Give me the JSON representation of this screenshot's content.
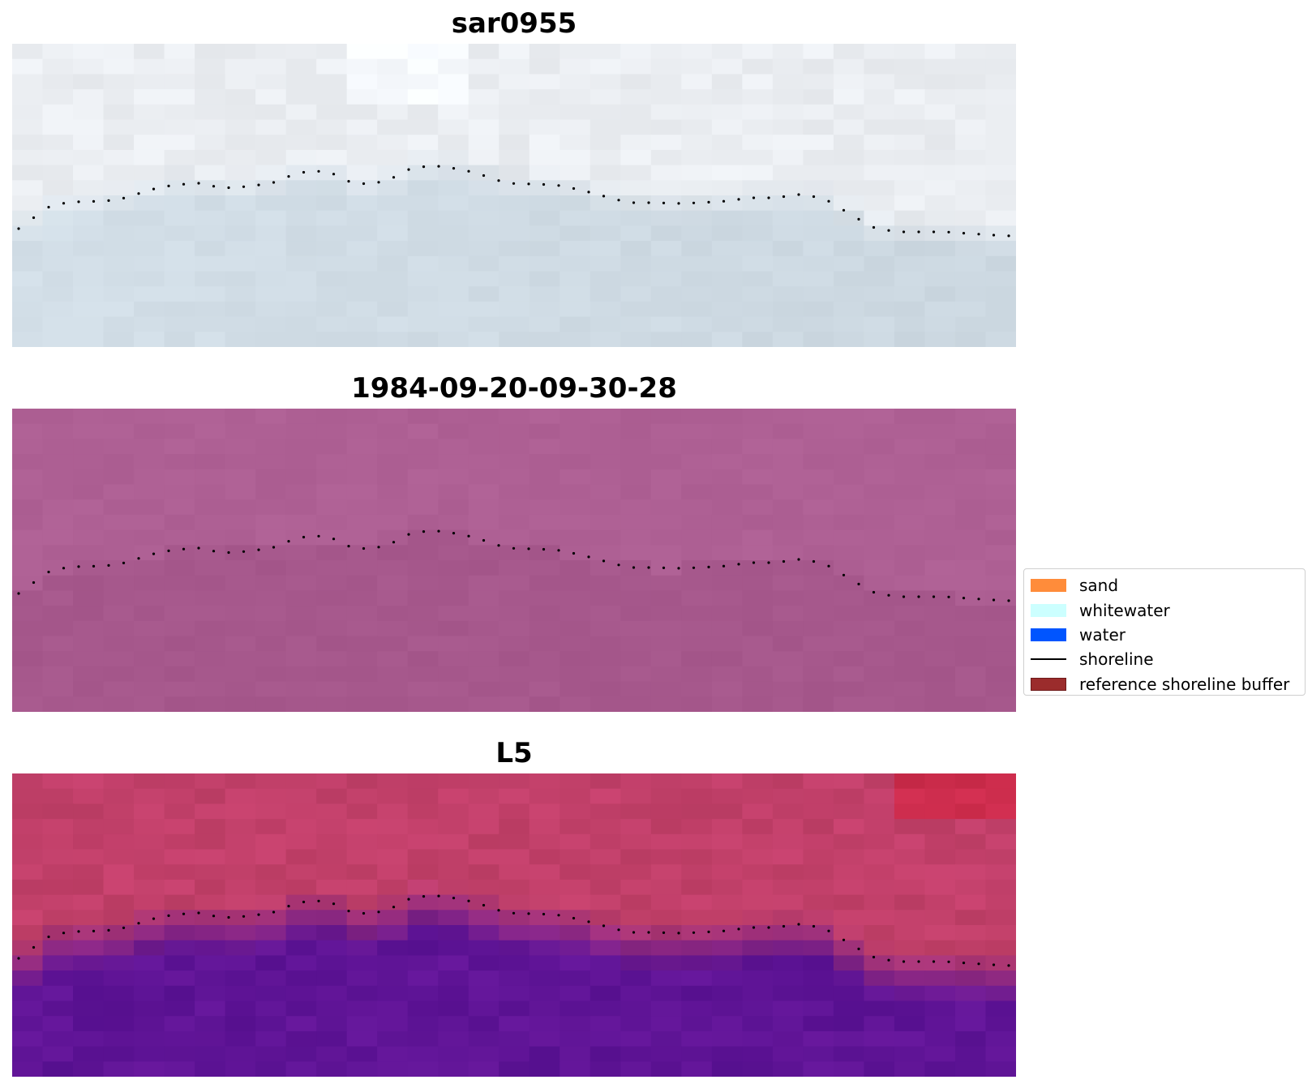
{
  "panels": [
    {
      "title": "sar0955",
      "style": "sar"
    },
    {
      "title": "1984-09-20-09-30-28",
      "style": "classified"
    },
    {
      "title": "L5",
      "style": "index"
    }
  ],
  "legend": {
    "items": [
      {
        "label": "sand",
        "color": "#ff8c3a",
        "kind": "patch"
      },
      {
        "label": "whitewater",
        "color": "#ccffff",
        "kind": "patch"
      },
      {
        "label": "water",
        "color": "#0055ff",
        "kind": "patch"
      },
      {
        "label": "shoreline",
        "color": "#000000",
        "kind": "line"
      },
      {
        "label": "reference shoreline buffer",
        "color": "#9b2c2c",
        "kind": "patch"
      }
    ]
  },
  "colors": {
    "shoreline_dots": "#000000",
    "sar_land": "#e8ebef",
    "sar_water": "#d3dfe8",
    "classified_base": "#aa5c90",
    "index_land": "#c2406a",
    "index_water": "#5f1496"
  }
}
